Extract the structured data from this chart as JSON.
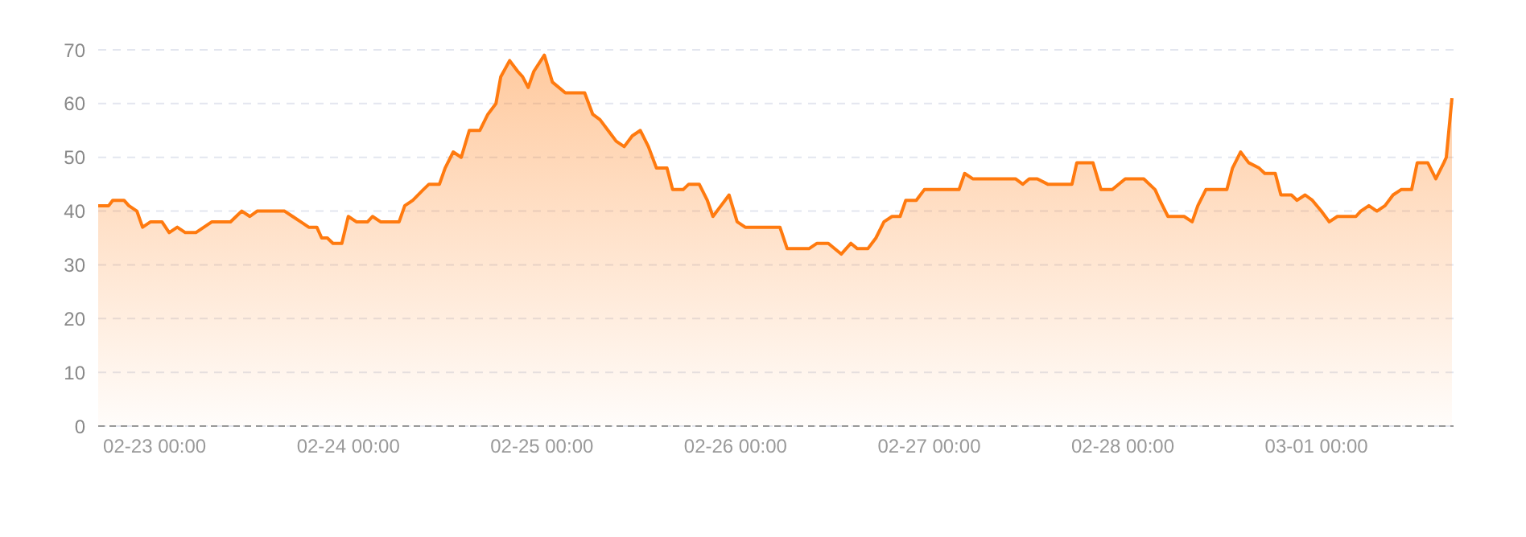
{
  "chart_data": {
    "type": "area",
    "grid": "y",
    "legend": false,
    "xlim": [
      "--02-22T17:00",
      "--03-01T17:00"
    ],
    "xticks": [
      {
        "value": "--02-23T00:00",
        "label": "02-23 00:00"
      },
      {
        "value": "--02-24T00:00",
        "label": "02-24 00:00"
      },
      {
        "value": "--02-25T00:00",
        "label": "02-25 00:00"
      },
      {
        "value": "--02-26T00:00",
        "label": "02-26 00:00"
      },
      {
        "value": "--02-27T00:00",
        "label": "02-27 00:00"
      },
      {
        "value": "--02-28T00:00",
        "label": "02-28 00:00"
      },
      {
        "value": "--03-01T00:00",
        "label": "03-01 00:00"
      }
    ],
    "ylim": [
      0,
      70
    ],
    "yticks": [
      0,
      10,
      20,
      30,
      40,
      50,
      60,
      70
    ],
    "x": [
      "--02-22T17:00",
      "--02-22T18:18",
      "--02-22T18:48",
      "--02-22T20:12",
      "--02-22T20:48",
      "--02-22T21:48",
      "--02-22T22:30",
      "--02-22T23:30",
      "--02-23T00:54",
      "--02-23T01:48",
      "--02-23T02:48",
      "--02-23T03:48",
      "--02-23T05:06",
      "--02-23T06:06",
      "--02-23T07:06",
      "--02-23T09:24",
      "--02-23T10:48",
      "--02-23T11:48",
      "--02-23T12:42",
      "--02-23T16:06",
      "--02-23T17:06",
      "--02-23T18:06",
      "--02-23T19:06",
      "--02-23T20:06",
      "--02-23T20:42",
      "--02-23T21:24",
      "--02-23T22:06",
      "--02-23T23:12",
      "--02-24T00:00",
      "--02-24T01:00",
      "--02-24T02:24",
      "--02-24T03:00",
      "--02-24T04:00",
      "--02-24T06:18",
      "--02-24T07:00",
      "--02-24T08:00",
      "--02-24T09:18",
      "--02-24T10:00",
      "--02-24T11:18",
      "--02-24T12:00",
      "--02-24T13:00",
      "--02-24T14:00",
      "--02-24T15:00",
      "--02-24T16:18",
      "--02-24T17:18",
      "--02-24T18:18",
      "--02-24T18:54",
      "--02-24T20:00",
      "--02-24T21:00",
      "--02-24T21:36",
      "--02-24T22:18",
      "--02-24T23:00",
      "--02-25T00:18",
      "--02-25T01:18",
      "--02-25T02:54",
      "--02-25T05:18",
      "--02-25T06:18",
      "--02-25T07:12",
      "--02-25T08:12",
      "--02-25T09:12",
      "--02-25T10:12",
      "--02-25T11:12",
      "--02-25T12:12",
      "--02-25T13:12",
      "--02-25T14:12",
      "--02-25T15:30",
      "--02-25T16:12",
      "--02-25T17:30",
      "--02-25T18:12",
      "--02-25T19:30",
      "--02-25T20:30",
      "--02-25T21:12",
      "--02-25T22:12",
      "--02-25T23:12",
      "--02-26T00:12",
      "--02-26T01:12",
      "--02-26T05:30",
      "--02-26T06:24",
      "--02-26T09:06",
      "--02-26T10:06",
      "--02-26T11:30",
      "--02-26T13:06",
      "--02-26T14:18",
      "--02-26T15:06",
      "--02-26T16:24",
      "--02-26T17:24",
      "--02-26T18:24",
      "--02-26T19:24",
      "--02-26T20:24",
      "--02-26T21:06",
      "--02-26T22:24",
      "--02-26T23:24",
      "--02-27T03:42",
      "--02-27T04:24",
      "--02-27T05:24",
      "--02-27T10:42",
      "--02-27T11:36",
      "--02-27T12:24",
      "--02-27T13:24",
      "--02-27T14:42",
      "--02-27T17:42",
      "--02-27T18:18",
      "--02-27T20:18",
      "--02-27T21:18",
      "--02-27T22:42",
      "--02-28T00:18",
      "--02-28T02:36",
      "--02-28T04:00",
      "--02-28T04:36",
      "--02-28T05:36",
      "--02-28T07:36",
      "--02-28T08:36",
      "--02-28T09:18",
      "--02-28T10:18",
      "--02-28T12:54",
      "--02-28T13:36",
      "--02-28T14:36",
      "--02-28T15:36",
      "--02-28T16:54",
      "--02-28T17:36",
      "--02-28T18:54",
      "--02-28T19:36",
      "--02-28T20:54",
      "--02-28T21:36",
      "--02-28T22:36",
      "--02-28T23:30",
      "--03-01T00:36",
      "--03-01T01:36",
      "--03-01T02:36",
      "--03-01T04:54",
      "--03-01T05:30",
      "--03-01T06:30",
      "--03-01T07:30",
      "--03-01T08:30",
      "--03-01T09:30",
      "--03-01T10:30",
      "--03-01T11:48",
      "--03-01T12:30",
      "--03-01T13:48",
      "--03-01T14:48",
      "--03-01T15:48",
      "--03-01T16:06",
      "--03-01T16:48"
    ],
    "series": [
      {
        "color": "#ff7a0f",
        "values": [
          41,
          41,
          42,
          42,
          41,
          40,
          37,
          38,
          38,
          36,
          37,
          36,
          36,
          37,
          38,
          38,
          40,
          39,
          40,
          40,
          39,
          38,
          37,
          37,
          35,
          35,
          34,
          34,
          39,
          38,
          38,
          39,
          38,
          38,
          41,
          42,
          44,
          45,
          45,
          48,
          51,
          50,
          55,
          55,
          58,
          60,
          65,
          68,
          66,
          65,
          63,
          66,
          69,
          64,
          62,
          62,
          58,
          57,
          55,
          53,
          52,
          54,
          55,
          52,
          48,
          48,
          44,
          44,
          45,
          45,
          42,
          39,
          41,
          43,
          38,
          37,
          37,
          33,
          33,
          34,
          34,
          32,
          34,
          33,
          33,
          35,
          38,
          39,
          39,
          42,
          42,
          44,
          44,
          47,
          46,
          46,
          45,
          46,
          46,
          45,
          45,
          49,
          49,
          44,
          44,
          46,
          46,
          44,
          42,
          39,
          39,
          38,
          41,
          44,
          44,
          48,
          51,
          49,
          48,
          47,
          47,
          43,
          43,
          42,
          43,
          42,
          40,
          38,
          39,
          39,
          40,
          41,
          40,
          41,
          43,
          44,
          44,
          49,
          49,
          46,
          49,
          50,
          61
        ]
      }
    ]
  }
}
